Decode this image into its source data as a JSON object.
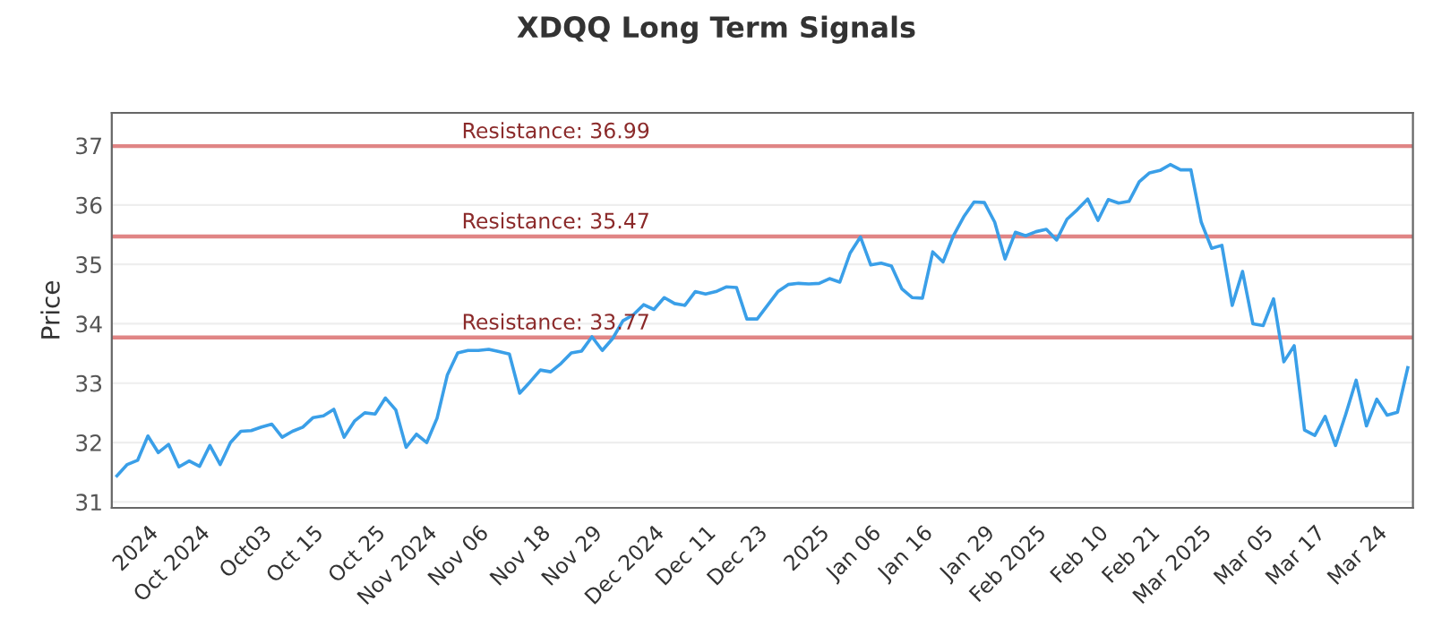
{
  "chart_data": {
    "type": "line",
    "title": "XDQQ Long Term Signals",
    "ylabel": "Price",
    "categories": [
      null,
      null,
      null,
      "2024",
      null,
      null,
      null,
      null,
      "Oct 2024",
      null,
      null,
      null,
      null,
      null,
      "Oct03",
      null,
      null,
      null,
      null,
      "Oct 15",
      null,
      null,
      null,
      null,
      null,
      "Oct 25",
      null,
      null,
      null,
      null,
      "Nov 2024",
      null,
      null,
      null,
      null,
      "Nov 06",
      null,
      null,
      null,
      null,
      null,
      "Nov 18",
      null,
      null,
      null,
      null,
      "Nov 29",
      null,
      null,
      null,
      null,
      null,
      "Dec 2024",
      null,
      null,
      null,
      null,
      "Dec 11",
      null,
      null,
      null,
      null,
      "Dec 23",
      null,
      null,
      null,
      null,
      null,
      "2025",
      null,
      null,
      null,
      null,
      "Jan 06",
      null,
      null,
      null,
      null,
      "Jan 16",
      null,
      null,
      null,
      null,
      null,
      "Jan 29",
      null,
      null,
      null,
      null,
      "Feb 2025",
      null,
      null,
      null,
      null,
      null,
      "Feb 10",
      null,
      null,
      null,
      null,
      "Feb 21",
      null,
      null,
      null,
      null,
      "Mar 2025",
      null,
      null,
      null,
      null,
      null,
      "Mar 05",
      null,
      null,
      null,
      null,
      "Mar 17",
      null,
      null,
      null,
      null,
      null,
      "Mar 24",
      null,
      null,
      null
    ],
    "series": [
      {
        "color": "#3a9fe8",
        "values": [
          31.44,
          31.63,
          31.7,
          32.11,
          31.83,
          31.97,
          31.59,
          31.69,
          31.6,
          31.95,
          31.63,
          32.0,
          32.19,
          32.2,
          32.26,
          32.31,
          32.09,
          32.19,
          32.26,
          32.42,
          32.45,
          32.56,
          32.09,
          32.36,
          32.5,
          32.48,
          32.75,
          32.55,
          31.92,
          32.14,
          32.0,
          32.41,
          33.14,
          33.51,
          33.55,
          33.55,
          33.57,
          33.53,
          33.49,
          32.83,
          33.02,
          33.22,
          33.19,
          33.33,
          33.51,
          33.54,
          33.78,
          33.55,
          33.75,
          34.05,
          34.15,
          34.32,
          34.24,
          34.44,
          34.34,
          34.31,
          34.54,
          34.5,
          34.54,
          34.62,
          34.61,
          34.08,
          34.08,
          34.31,
          34.54,
          34.66,
          34.68,
          34.67,
          34.68,
          34.76,
          34.7,
          35.19,
          35.46,
          34.99,
          35.02,
          34.97,
          34.59,
          34.44,
          34.43,
          35.21,
          35.04,
          35.48,
          35.8,
          36.05,
          36.04,
          35.71,
          35.09,
          35.54,
          35.48,
          35.55,
          35.59,
          35.41,
          35.76,
          35.92,
          36.1,
          35.74,
          36.09,
          36.03,
          36.06,
          36.39,
          36.54,
          36.58,
          36.68,
          36.59,
          36.59,
          35.71,
          35.27,
          35.32,
          34.31,
          34.88,
          34.0,
          33.97,
          34.42,
          33.36,
          33.63,
          32.21,
          32.12,
          32.44,
          31.95,
          32.48,
          33.05,
          32.28,
          32.73,
          32.46,
          32.51,
          33.26
        ]
      }
    ],
    "ylim": [
      30.9,
      37.55
    ],
    "yticks": [
      31,
      32,
      33,
      34,
      35,
      36,
      37
    ],
    "grid": "y",
    "marker": "none",
    "line_style": "solid",
    "legend": false,
    "ref_lines": [
      {
        "axis": "y",
        "value": 36.99,
        "label": "Resistance: 36.99",
        "color": "#e08585"
      },
      {
        "axis": "y",
        "value": 35.47,
        "label": "Resistance: 35.47",
        "color": "#e08585"
      },
      {
        "axis": "y",
        "value": 33.77,
        "label": "Resistance: 33.77",
        "color": "#e08585"
      }
    ]
  }
}
